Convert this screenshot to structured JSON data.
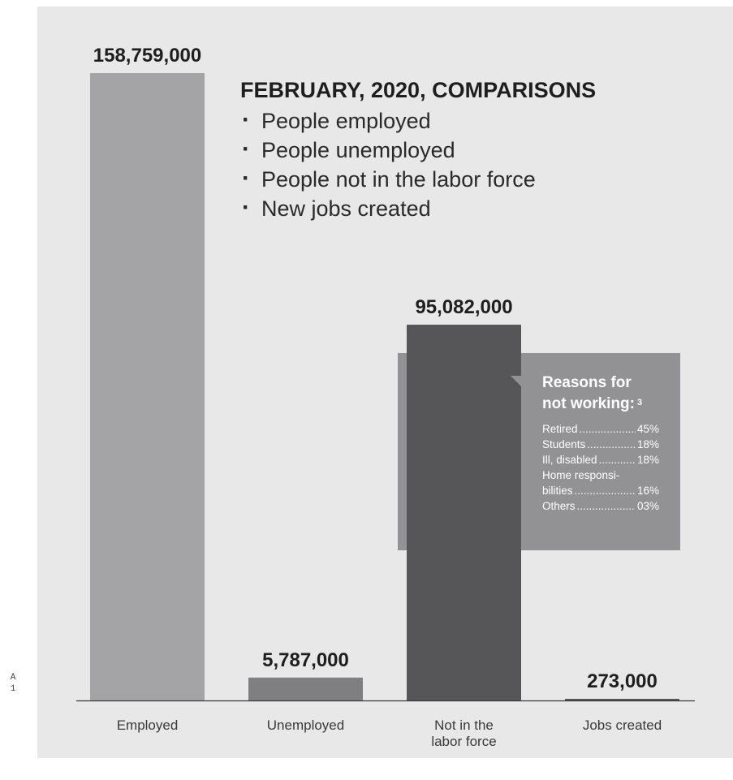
{
  "side_marks": [
    "A",
    "1"
  ],
  "headline": {
    "title": "FEBRUARY, 2020, COMPARISONS",
    "bullets": [
      "People employed",
      "People unemployed",
      "People not in the labor force",
      "New jobs created"
    ]
  },
  "chart_data": {
    "type": "bar",
    "categories": [
      [
        "Employed"
      ],
      [
        "Unemployed"
      ],
      [
        "Not in the",
        "labor force"
      ],
      [
        "Jobs created"
      ]
    ],
    "values": [
      158759000,
      5787000,
      95082000,
      273000
    ],
    "value_labels": [
      "158,759,000",
      "5,787,000",
      "95,082,000",
      "273,000"
    ],
    "colors": [
      "#a4a4a6",
      "#7f7f81",
      "#565658",
      "#565658"
    ],
    "background": "#e8e8e9",
    "axis_color": "#3a3a3a",
    "ylim": [
      0,
      158759000
    ],
    "grid": false,
    "legend": "none"
  },
  "callout": {
    "title_lines": [
      "Reasons for",
      "not working:"
    ],
    "footnote": "3",
    "reasons": [
      {
        "label": "Retired",
        "value": "45%"
      },
      {
        "label": "Students",
        "value": "18%"
      },
      {
        "label": "Ill, disabled",
        "value": "18%"
      },
      {
        "label_lines": [
          "Home responsi-",
          "bilities"
        ],
        "value": "16%"
      },
      {
        "label": "Others",
        "value": "03%"
      }
    ],
    "colors": {
      "box": "#929294",
      "text": "#ffffff"
    }
  }
}
